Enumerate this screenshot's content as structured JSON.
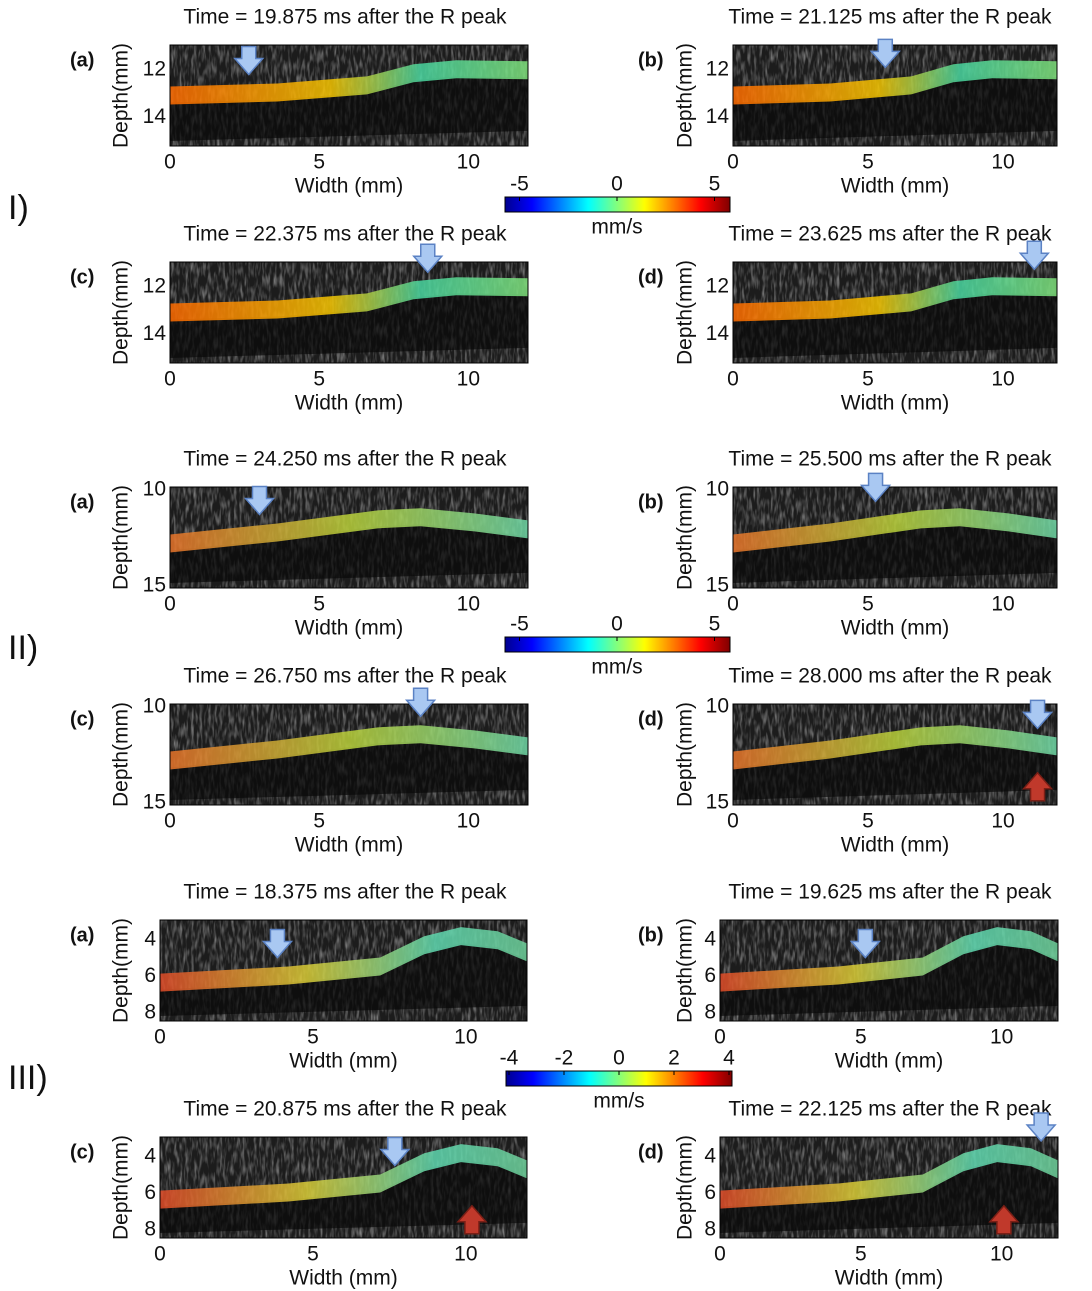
{
  "groups": [
    {
      "label": "I)",
      "colorbar": {
        "ticks": [
          -5,
          0,
          5
        ],
        "unit": "mm/s"
      },
      "panels": [
        {
          "label": "(a)",
          "title": "Time = 19.875 ms after the R peak",
          "y_label": "Depth(mm)",
          "x_label": "Width (mm)",
          "y_ticks": [
            12,
            14
          ],
          "x_ticks": [
            0,
            5,
            10
          ]
        },
        {
          "label": "(b)",
          "title": "Time = 21.125 ms after the R peak",
          "y_label": "Depth(mm)",
          "x_label": "Width (mm)",
          "y_ticks": [
            12,
            14
          ],
          "x_ticks": [
            0,
            5,
            10
          ]
        },
        {
          "label": "(c)",
          "title": "Time = 22.375 ms after the R peak",
          "y_label": "Depth(mm)",
          "x_label": "Width (mm)",
          "y_ticks": [
            12,
            14
          ],
          "x_ticks": [
            0,
            5,
            10
          ]
        },
        {
          "label": "(d)",
          "title": "Time = 23.625 ms after the R peak",
          "y_label": "Depth(mm)",
          "x_label": "Width (mm)",
          "y_ticks": [
            12,
            14
          ],
          "x_ticks": [
            0,
            5,
            10
          ]
        }
      ]
    },
    {
      "label": "II)",
      "colorbar": {
        "ticks": [
          -5,
          0,
          5
        ],
        "unit": "mm/s"
      },
      "panels": [
        {
          "label": "(a)",
          "title": "Time = 24.250  ms after the R peak",
          "y_label": "Depth(mm)",
          "x_label": "Width (mm)",
          "y_ticks": [
            10,
            15
          ],
          "x_ticks": [
            0,
            5,
            10
          ]
        },
        {
          "label": "(b)",
          "title": "Time = 25.500 ms after the R peak",
          "y_label": "Depth(mm)",
          "x_label": "Width (mm)",
          "y_ticks": [
            10,
            15
          ],
          "x_ticks": [
            0,
            5,
            10
          ]
        },
        {
          "label": "(c)",
          "title": "Time = 26.750 ms after the R peak",
          "y_label": "Depth(mm)",
          "x_label": "Width (mm)",
          "y_ticks": [
            10,
            15
          ],
          "x_ticks": [
            0,
            5,
            10
          ]
        },
        {
          "label": "(d)",
          "title": "Time = 28.000 ms after the R peak",
          "y_label": "Depth(mm)",
          "x_label": "Width (mm)",
          "y_ticks": [
            10,
            15
          ],
          "x_ticks": [
            0,
            5,
            10
          ]
        }
      ]
    },
    {
      "label": "III)",
      "colorbar": {
        "ticks": [
          -4,
          -2,
          0,
          2,
          4
        ],
        "unit": "mm/s"
      },
      "panels": [
        {
          "label": "(a)",
          "title": "Time = 18.375 ms after the R peak",
          "y_label": "Depth(mm)",
          "x_label": "Width (mm)",
          "y_ticks": [
            4,
            6,
            8
          ],
          "x_ticks": [
            0,
            5,
            10
          ]
        },
        {
          "label": "(b)",
          "title": "Time = 19.625 ms after the R peak",
          "y_label": "Depth(mm)",
          "x_label": "Width (mm)",
          "y_ticks": [
            4,
            6,
            8
          ],
          "x_ticks": [
            0,
            5,
            10
          ]
        },
        {
          "label": "(c)",
          "title": "Time = 20.875 ms after the R peak",
          "y_label": "Depth(mm)",
          "x_label": "Width (mm)",
          "y_ticks": [
            4,
            6,
            8
          ],
          "x_ticks": [
            0,
            5,
            10
          ]
        },
        {
          "label": "(d)",
          "title": "Time = 22.125 ms after the R peak",
          "y_label": "Depth(mm)",
          "x_label": "Width (mm)",
          "y_ticks": [
            4,
            6,
            8
          ],
          "x_ticks": [
            0,
            5,
            10
          ]
        }
      ]
    }
  ]
}
